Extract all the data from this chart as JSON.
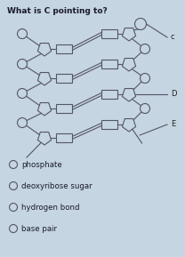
{
  "title": "What is C pointing to?",
  "title_fontsize": 6.5,
  "bg_color": "#c5d5e2",
  "options": [
    "phosphate",
    "deoxyribose sugar",
    "hydrogen bond",
    "base pair"
  ],
  "options_fontsize": 6.2,
  "label_c": "c",
  "label_d": "D",
  "label_e": "E",
  "line_color": "#555566",
  "shape_fill": "#c5d5e2",
  "shape_edge": "#555566",
  "lw": 0.8
}
